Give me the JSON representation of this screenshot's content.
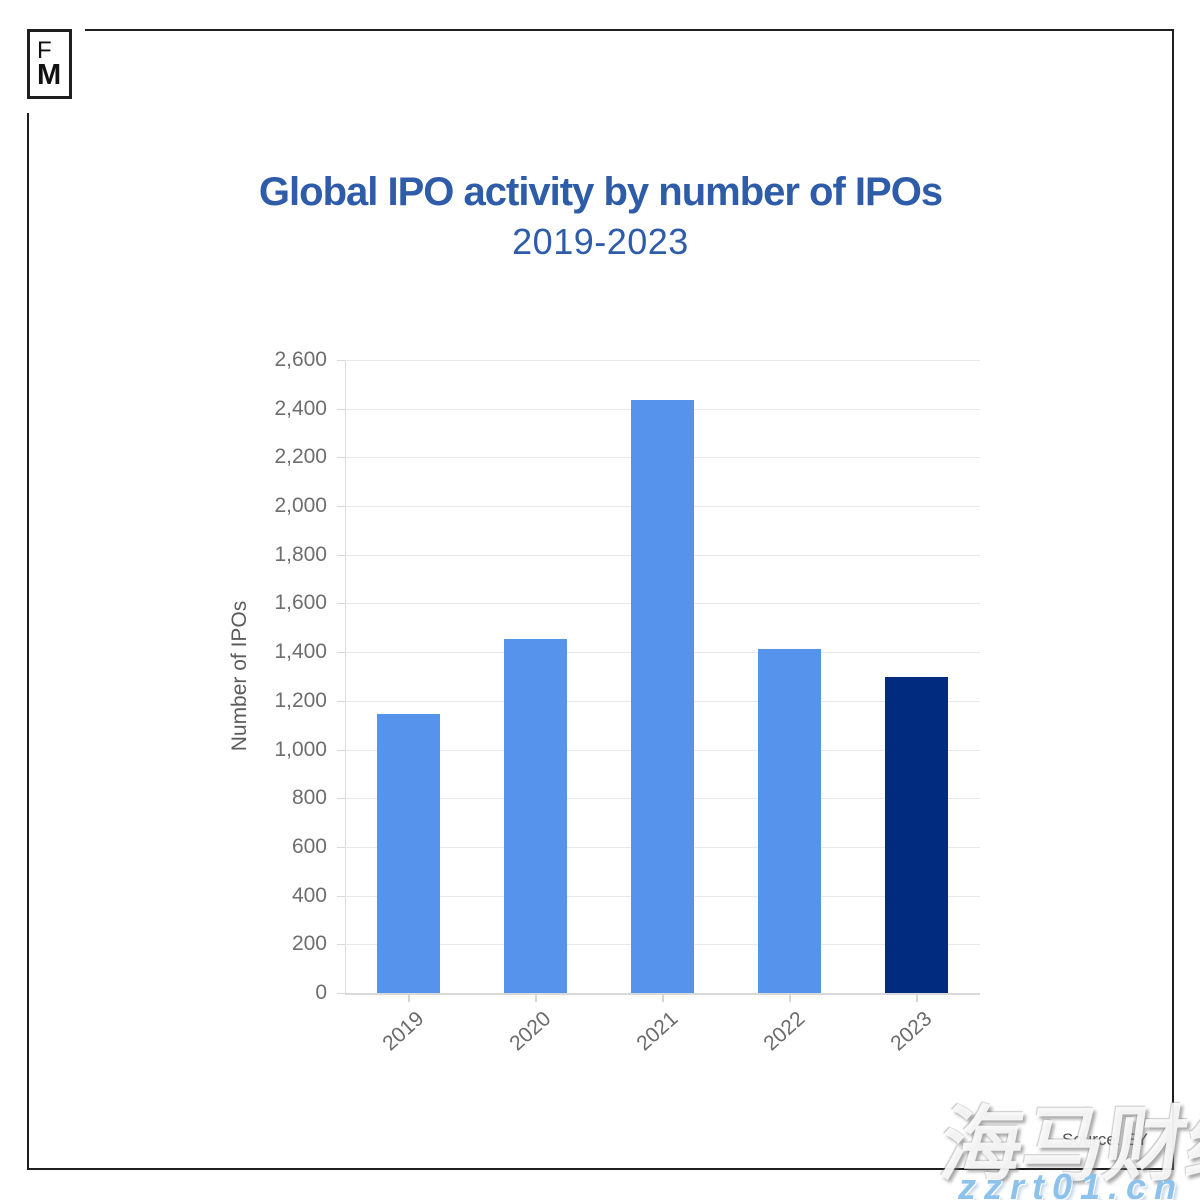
{
  "logo": {
    "letter_top": "F",
    "letter_bottom": "M"
  },
  "chart_data": {
    "type": "bar",
    "title": "Global IPO activity by number of IPOs",
    "subtitle": "2019-2023",
    "categories": [
      "2019",
      "2020",
      "2021",
      "2022",
      "2023"
    ],
    "values": [
      1146,
      1452,
      2436,
      1415,
      1298
    ],
    "ylabel": "Number of IPOs",
    "xlabel": "",
    "ylim": [
      0,
      2600
    ],
    "ytick_step": 200,
    "grid": true,
    "legend": "none",
    "bar_colors": [
      "#5593ec",
      "#5593ec",
      "#5593ec",
      "#5593ec",
      "#002b7e"
    ],
    "accent_color": "#2e5ca9"
  },
  "footer": {
    "source": "Source: EY"
  },
  "watermark": {
    "cn_text": "海马财经",
    "url_text": "zzrt01.cn",
    "url_color": "#8cc2ec"
  }
}
